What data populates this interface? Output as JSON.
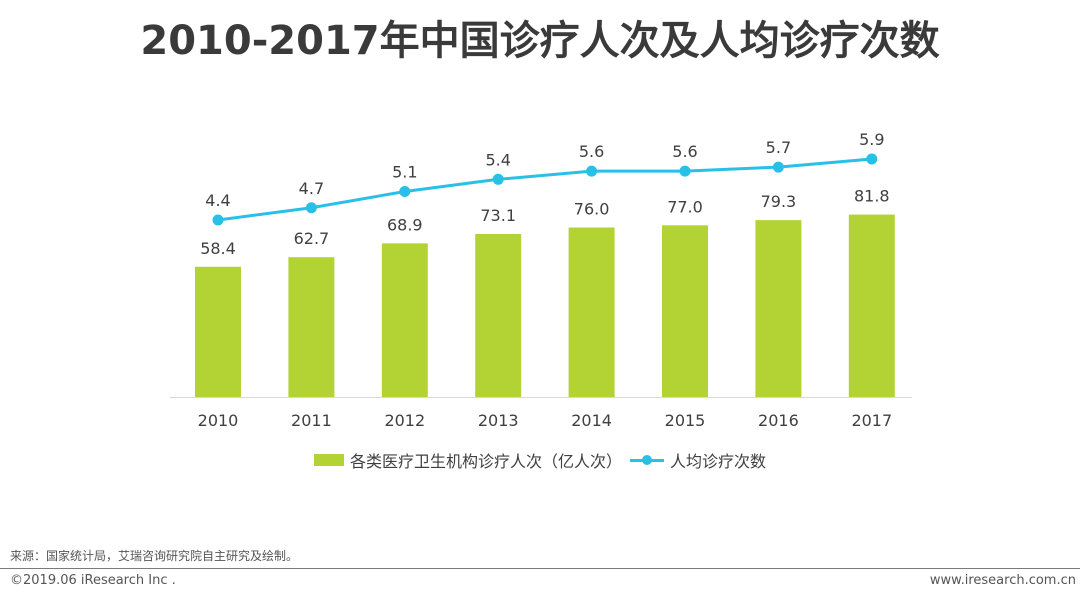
{
  "title": "2010-2017年中国诊疗人次及人均诊疗次数",
  "colors": {
    "bar": "#b3d335",
    "line": "#29c0e8",
    "axis": "#d9d9d9",
    "text": "#404040"
  },
  "chart_data": {
    "type": "bar",
    "title": "2010-2017年中国诊疗人次及人均诊疗次数",
    "xlabel": "",
    "ylabel": "",
    "categories": [
      "2010",
      "2011",
      "2012",
      "2013",
      "2014",
      "2015",
      "2016",
      "2017"
    ],
    "series": [
      {
        "name": "各类医疗卫生机构诊疗人次（亿人次）",
        "type": "bar",
        "values": [
          58.4,
          62.7,
          68.9,
          73.1,
          76.0,
          77.0,
          79.3,
          81.8
        ],
        "labels": [
          "58.4",
          "62.7",
          "68.9",
          "73.1",
          "76.0",
          "77.0",
          "79.3",
          "81.8"
        ]
      },
      {
        "name": "人均诊疗次数",
        "type": "line",
        "values": [
          4.4,
          4.7,
          5.1,
          5.4,
          5.6,
          5.6,
          5.7,
          5.9
        ],
        "labels": [
          "4.4",
          "4.7",
          "5.1",
          "5.4",
          "5.6",
          "5.6",
          "5.7",
          "5.9"
        ]
      }
    ],
    "grid": false,
    "y_axis_visible": false,
    "legend_position": "bottom"
  },
  "legend": {
    "bar_label": "各类医疗卫生机构诊疗人次（亿人次）",
    "line_label": "人均诊疗次数"
  },
  "footer": {
    "source": "来源：国家统计局，艾瑞咨询研究院自主研究及绘制。",
    "copyright": "©2019.06 iResearch Inc .",
    "website": "www.iresearch.com.cn"
  }
}
